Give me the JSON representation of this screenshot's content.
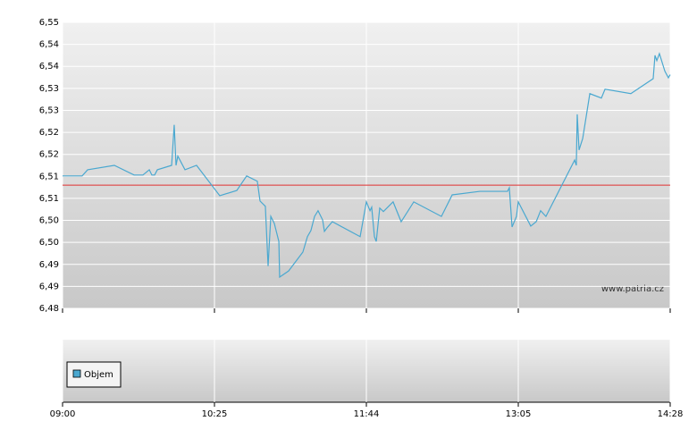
{
  "chart_data": {
    "type": "line",
    "color": "#4aa8d0",
    "x": [
      0,
      0.129,
      0.165,
      0.341,
      0.471,
      0.529,
      0.571,
      0.588,
      0.606,
      0.624,
      0.718,
      0.735,
      0.747,
      0.759,
      0.806,
      0.882,
      1.035,
      1.147,
      1.212,
      1.282,
      1.3,
      1.335,
      1.353,
      1.371,
      1.394,
      1.424,
      1.429,
      1.488,
      1.582,
      1.612,
      1.635,
      1.659,
      1.682,
      1.712,
      1.724,
      1.741,
      1.776,
      1.959,
      2,
      2.024,
      2.035,
      2.053,
      2.065,
      2.088,
      2.112,
      2.176,
      2.229,
      2.312,
      2.494,
      2.565,
      2.747,
      2.929,
      2.941,
      2.959,
      2.988,
      3,
      3.082,
      3.118,
      3.147,
      3.182,
      3.371,
      3.382,
      3.388,
      3.4,
      3.424,
      3.471,
      3.547,
      3.571,
      3.741,
      3.888,
      3.9,
      3.912,
      3.929,
      3.965,
      3.988,
      4
    ],
    "values": [
      6.5101,
      6.5101,
      6.5115,
      6.5125,
      6.5103,
      6.5103,
      6.5115,
      6.5103,
      6.5103,
      6.5115,
      6.5125,
      6.5217,
      6.5125,
      6.5146,
      6.5115,
      6.5125,
      6.5056,
      6.5068,
      6.5101,
      6.5089,
      6.5044,
      6.5032,
      6.4896,
      6.5009,
      6.4993,
      6.4952,
      6.4871,
      6.4885,
      6.4928,
      6.4963,
      6.4977,
      6.5009,
      6.5022,
      6.5001,
      6.4975,
      6.4983,
      6.4997,
      6.4963,
      6.5042,
      6.5022,
      6.503,
      6.4963,
      6.4952,
      6.5028,
      6.502,
      6.5042,
      6.4997,
      6.5042,
      6.5009,
      6.5058,
      6.5066,
      6.5066,
      6.5074,
      6.4985,
      6.5009,
      6.5042,
      6.4987,
      6.4997,
      6.5022,
      6.5009,
      6.5137,
      6.5125,
      6.5241,
      6.516,
      6.5186,
      6.5288,
      6.5278,
      6.5298,
      6.5288,
      6.5322,
      6.5375,
      6.5363,
      6.5379,
      6.5339,
      6.5324,
      6.5331
    ],
    "xlim": [
      0,
      4
    ],
    "xticks": [
      {
        "value": 0,
        "label": "09:00"
      },
      {
        "value": 1,
        "label": "10:25"
      },
      {
        "value": 2,
        "label": "11:44"
      },
      {
        "value": 3,
        "label": "13:05"
      },
      {
        "value": 4,
        "label": "14:28"
      }
    ],
    "ylim": [
      6.48,
      6.545
    ],
    "yticks": [
      {
        "value": 6.48,
        "label": "6,48"
      },
      {
        "value": 6.485,
        "label": "6,49"
      },
      {
        "value": 6.49,
        "label": "6,49"
      },
      {
        "value": 6.495,
        "label": "6,50"
      },
      {
        "value": 6.5,
        "label": "6,50"
      },
      {
        "value": 6.505,
        "label": "6,51"
      },
      {
        "value": 6.51,
        "label": "6,51"
      },
      {
        "value": 6.515,
        "label": "6,52"
      },
      {
        "value": 6.52,
        "label": "6,52"
      },
      {
        "value": 6.525,
        "label": "6,53"
      },
      {
        "value": 6.53,
        "label": "6,53"
      },
      {
        "value": 6.535,
        "label": "6,54"
      },
      {
        "value": 6.54,
        "label": "6,54"
      },
      {
        "value": 6.545,
        "label": "6,55"
      }
    ],
    "grid": true,
    "reference_line": 6.508,
    "reference_color": "#e03030",
    "watermark": "www.patria.cz",
    "volume_legend": "Objem",
    "volume_color": "#4aa8d0"
  }
}
